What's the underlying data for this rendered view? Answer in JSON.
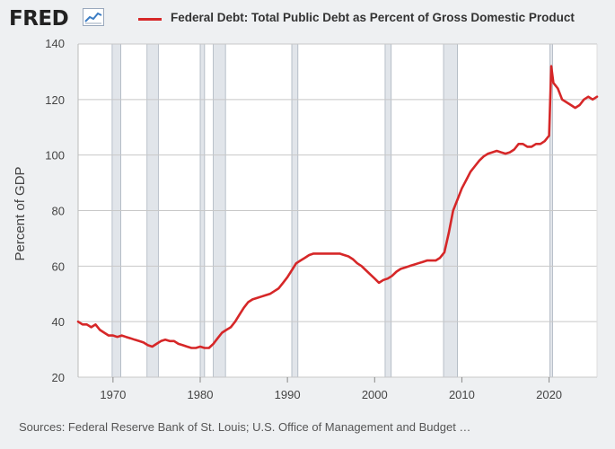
{
  "header": {
    "logo_text": "FRED",
    "logo_icon": "line-chart-icon",
    "title": "Federal Debt: Total Public Debt as Percent of Gross Domestic Product"
  },
  "footer": {
    "source": "Sources: Federal Reserve Bank of St. Louis; U.S. Office of Management and Budget …"
  },
  "colors": {
    "series": "#d62728",
    "recession": "#e1e5ea",
    "grid": "#c8c8c8",
    "background": "#eef0f2"
  },
  "chart_data": {
    "type": "line",
    "title": "Federal Debt: Total Public Debt as Percent of Gross Domestic Product",
    "xlabel": "",
    "ylabel": "Percent of GDP",
    "xlim": [
      1966,
      2025.5
    ],
    "ylim": [
      20,
      140
    ],
    "yticks": [
      20,
      40,
      60,
      80,
      100,
      120,
      140
    ],
    "xticks": [
      1970,
      1980,
      1990,
      2000,
      2010,
      2020
    ],
    "grid": true,
    "recessions": [
      [
        1969.9,
        1970.9
      ],
      [
        1973.9,
        1975.2
      ],
      [
        1980.0,
        1980.5
      ],
      [
        1981.5,
        1982.9
      ],
      [
        1990.5,
        1991.2
      ],
      [
        2001.2,
        2001.9
      ],
      [
        2007.9,
        2009.5
      ],
      [
        2020.1,
        2020.4
      ]
    ],
    "series": [
      {
        "name": "Federal Debt: Total Public Debt as Percent of Gross Domestic Product",
        "x": [
          1966,
          1966.5,
          1967,
          1967.5,
          1968,
          1968.5,
          1969,
          1969.5,
          1970,
          1970.5,
          1971,
          1971.5,
          1972,
          1972.5,
          1973,
          1973.5,
          1974,
          1974.5,
          1975,
          1975.5,
          1976,
          1976.5,
          1977,
          1977.5,
          1978,
          1978.5,
          1979,
          1979.5,
          1980,
          1980.5,
          1981,
          1981.5,
          1982,
          1982.5,
          1983,
          1983.5,
          1984,
          1984.5,
          1985,
          1985.5,
          1986,
          1986.5,
          1987,
          1987.5,
          1988,
          1988.5,
          1989,
          1989.5,
          1990,
          1990.5,
          1991,
          1991.5,
          1992,
          1992.5,
          1993,
          1993.5,
          1994,
          1994.5,
          1995,
          1995.5,
          1996,
          1996.5,
          1997,
          1997.5,
          1998,
          1998.5,
          1999,
          1999.5,
          2000,
          2000.5,
          2001,
          2001.5,
          2002,
          2002.5,
          2003,
          2003.5,
          2004,
          2004.5,
          2005,
          2005.5,
          2006,
          2006.5,
          2007,
          2007.5,
          2008,
          2008.5,
          2009,
          2009.5,
          2010,
          2010.5,
          2011,
          2011.5,
          2012,
          2012.5,
          2013,
          2013.5,
          2014,
          2014.5,
          2015,
          2015.5,
          2016,
          2016.5,
          2017,
          2017.5,
          2018,
          2018.5,
          2019,
          2019.5,
          2020,
          2020.25,
          2020.5,
          2020.75,
          2021,
          2021.5,
          2022,
          2022.5,
          2023,
          2023.5,
          2024,
          2024.5,
          2025,
          2025.5
        ],
        "values": [
          40,
          39,
          39,
          38,
          39,
          37,
          36,
          35,
          35,
          34.5,
          35,
          34.5,
          34,
          33.5,
          33,
          32.5,
          31.5,
          31,
          32,
          33,
          33.5,
          33,
          33,
          32,
          31.5,
          31,
          30.5,
          30.5,
          31,
          30.5,
          30.5,
          32,
          34,
          36,
          37,
          38,
          40,
          42.5,
          45,
          47,
          48,
          48.5,
          49,
          49.5,
          50,
          51,
          52,
          54,
          56,
          58.5,
          61,
          62,
          63,
          64,
          64.5,
          64.5,
          64.5,
          64.5,
          64.5,
          64.5,
          64.5,
          64,
          63.5,
          62.5,
          61,
          60,
          58.5,
          57,
          55.5,
          54,
          55,
          55.5,
          56.5,
          58,
          59,
          59.5,
          60,
          60.5,
          61,
          61.5,
          62,
          62,
          62,
          63,
          65,
          72,
          80,
          84,
          88,
          91,
          94,
          96,
          98,
          99.5,
          100.5,
          101,
          101.5,
          101,
          100.5,
          101,
          102,
          104,
          104,
          103,
          103,
          104,
          104,
          105,
          107,
          132,
          126,
          125,
          124,
          120,
          119,
          118,
          117,
          118,
          120,
          121,
          120,
          121
        ]
      }
    ]
  }
}
